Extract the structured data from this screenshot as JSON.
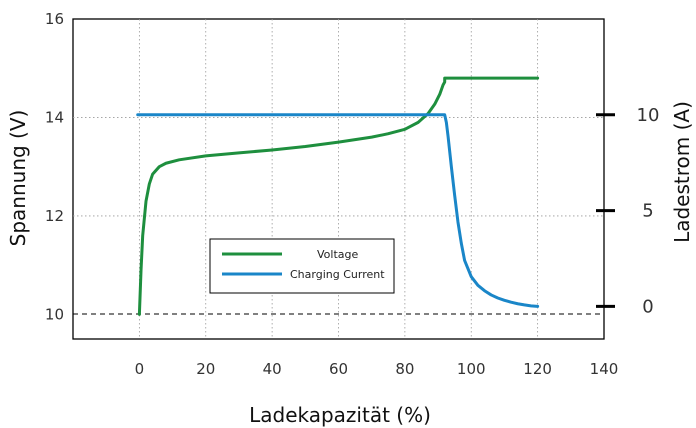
{
  "chart_data": {
    "type": "line",
    "xlabel": "Ladekapazität (%)",
    "ylabel_left": "Spannung (V)",
    "ylabel_right": "Ladestrom (A)",
    "xlim": [
      -20,
      140
    ],
    "ylim_left": [
      9.5,
      16
    ],
    "ylim_right": [
      -1.7,
      15
    ],
    "x_ticks": [
      "0",
      "20",
      "40",
      "60",
      "80",
      "100",
      "120",
      "140"
    ],
    "y_left_ticks": [
      "10",
      "12",
      "14",
      "16"
    ],
    "y_right_ticks": [
      "0",
      "5",
      "10"
    ],
    "grid": true,
    "legend_position": "center-left",
    "colors": {
      "voltage": "#1e8f3e",
      "current": "#1a86c8"
    },
    "series": [
      {
        "name": "Voltage",
        "axis": "left",
        "color": "#1e8f3e",
        "x": [
          0,
          0.5,
          1,
          2,
          3,
          4,
          6,
          8,
          12,
          20,
          30,
          40,
          50,
          60,
          70,
          75,
          80,
          84,
          87,
          89,
          90.5,
          91.5,
          92,
          92,
          100,
          110,
          120
        ],
        "y": [
          10.0,
          10.9,
          11.6,
          12.3,
          12.65,
          12.85,
          13.0,
          13.07,
          13.14,
          13.22,
          13.28,
          13.34,
          13.41,
          13.5,
          13.6,
          13.67,
          13.76,
          13.9,
          14.08,
          14.27,
          14.47,
          14.66,
          14.72,
          14.8,
          14.8,
          14.8,
          14.8
        ]
      },
      {
        "name": "Charging Current",
        "axis": "right",
        "color": "#1a86c8",
        "x": [
          -0.5,
          20,
          40,
          60,
          80,
          92,
          92.5,
          93,
          94,
          95,
          96,
          97,
          98,
          100,
          102,
          104,
          106,
          108,
          110,
          112,
          114,
          116,
          118,
          120
        ],
        "y": [
          10,
          10,
          10,
          10,
          10,
          10,
          9.6,
          8.9,
          7.3,
          5.8,
          4.4,
          3.3,
          2.4,
          1.55,
          1.1,
          0.82,
          0.6,
          0.44,
          0.32,
          0.22,
          0.14,
          0.08,
          0.03,
          0.0
        ]
      }
    ]
  }
}
